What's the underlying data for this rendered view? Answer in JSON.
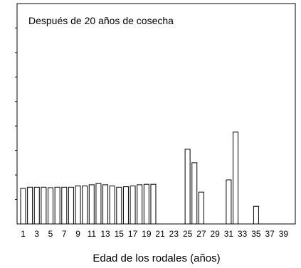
{
  "chart_data": {
    "type": "bar",
    "title": "Después de 20 años de cosecha",
    "xlabel": "Edad de los rodales (años)",
    "ylabel": "",
    "x": [
      1,
      2,
      3,
      4,
      5,
      6,
      7,
      8,
      9,
      10,
      11,
      12,
      13,
      14,
      15,
      16,
      17,
      18,
      19,
      20,
      21,
      22,
      23,
      24,
      25,
      26,
      27,
      28,
      29,
      30,
      31,
      32,
      33,
      34,
      35,
      36,
      37,
      38,
      39,
      40
    ],
    "values": [
      1.45,
      1.5,
      1.5,
      1.5,
      1.48,
      1.5,
      1.5,
      1.5,
      1.55,
      1.55,
      1.6,
      1.65,
      1.6,
      1.55,
      1.5,
      1.52,
      1.55,
      1.6,
      1.62,
      1.62,
      0,
      0,
      0,
      0,
      3.05,
      2.5,
      1.3,
      0,
      0,
      0,
      1.8,
      3.75,
      0,
      0,
      0.72,
      0,
      0,
      0,
      0,
      0
    ],
    "x_tick_labels": [
      "1",
      "3",
      "5",
      "7",
      "9",
      "11",
      "13",
      "15",
      "17",
      "19",
      "21",
      "23",
      "25",
      "27",
      "29",
      "31",
      "33",
      "35",
      "37",
      "39"
    ],
    "ylim": [
      0,
      9
    ],
    "y_ticks": [
      1,
      2,
      3,
      4,
      5,
      6,
      7,
      8
    ],
    "y_tick_labels_shown": false,
    "grid": false,
    "bar_fill": "#ffffff",
    "bar_stroke": "#000000"
  }
}
